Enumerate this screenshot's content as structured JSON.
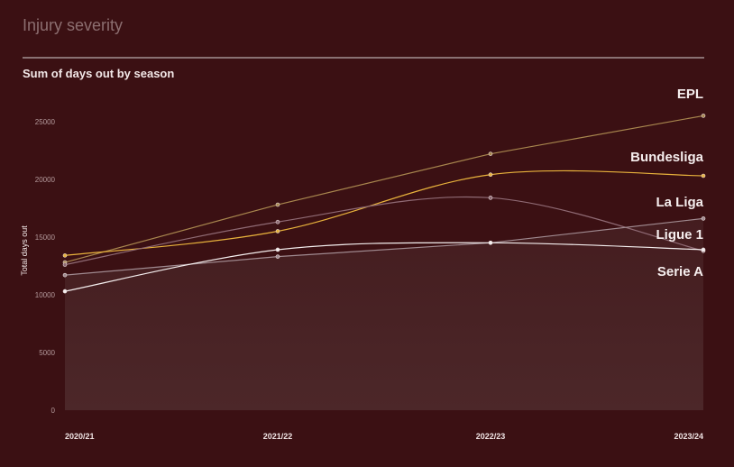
{
  "page": {
    "title": "Injury severity",
    "subtitle": "Sum of days out by season"
  },
  "chart_data": {
    "type": "line",
    "title": "Sum of days out by season",
    "xlabel": "",
    "ylabel": "Total days out",
    "x": [
      "2020/21",
      "2021/22",
      "2022/23",
      "2023/24"
    ],
    "ylim": [
      0,
      26000
    ],
    "yticks": [
      0,
      5000,
      10000,
      15000,
      20000,
      25000
    ],
    "grid": false,
    "legend": "labels at line ends (right)",
    "series": [
      {
        "name": "EPL",
        "values": [
          12800,
          17800,
          22200,
          25500
        ],
        "color": "#a8864e",
        "curve": false
      },
      {
        "name": "Bundesliga",
        "values": [
          13400,
          15500,
          20400,
          20300
        ],
        "color": "#e8b23c",
        "curve": true
      },
      {
        "name": "La Liga",
        "values": [
          12600,
          16300,
          18400,
          13800
        ],
        "color": "#8f6a74",
        "curve": true
      },
      {
        "name": "Ligue 1",
        "values": [
          11700,
          13300,
          14500,
          16600
        ],
        "color": "#a08a90",
        "curve": false
      },
      {
        "name": "Serie A",
        "values": [
          10300,
          13900,
          14500,
          13900
        ],
        "color": "#f4eeee",
        "curve": true
      }
    ],
    "area_fill_color": "#4c2729"
  }
}
